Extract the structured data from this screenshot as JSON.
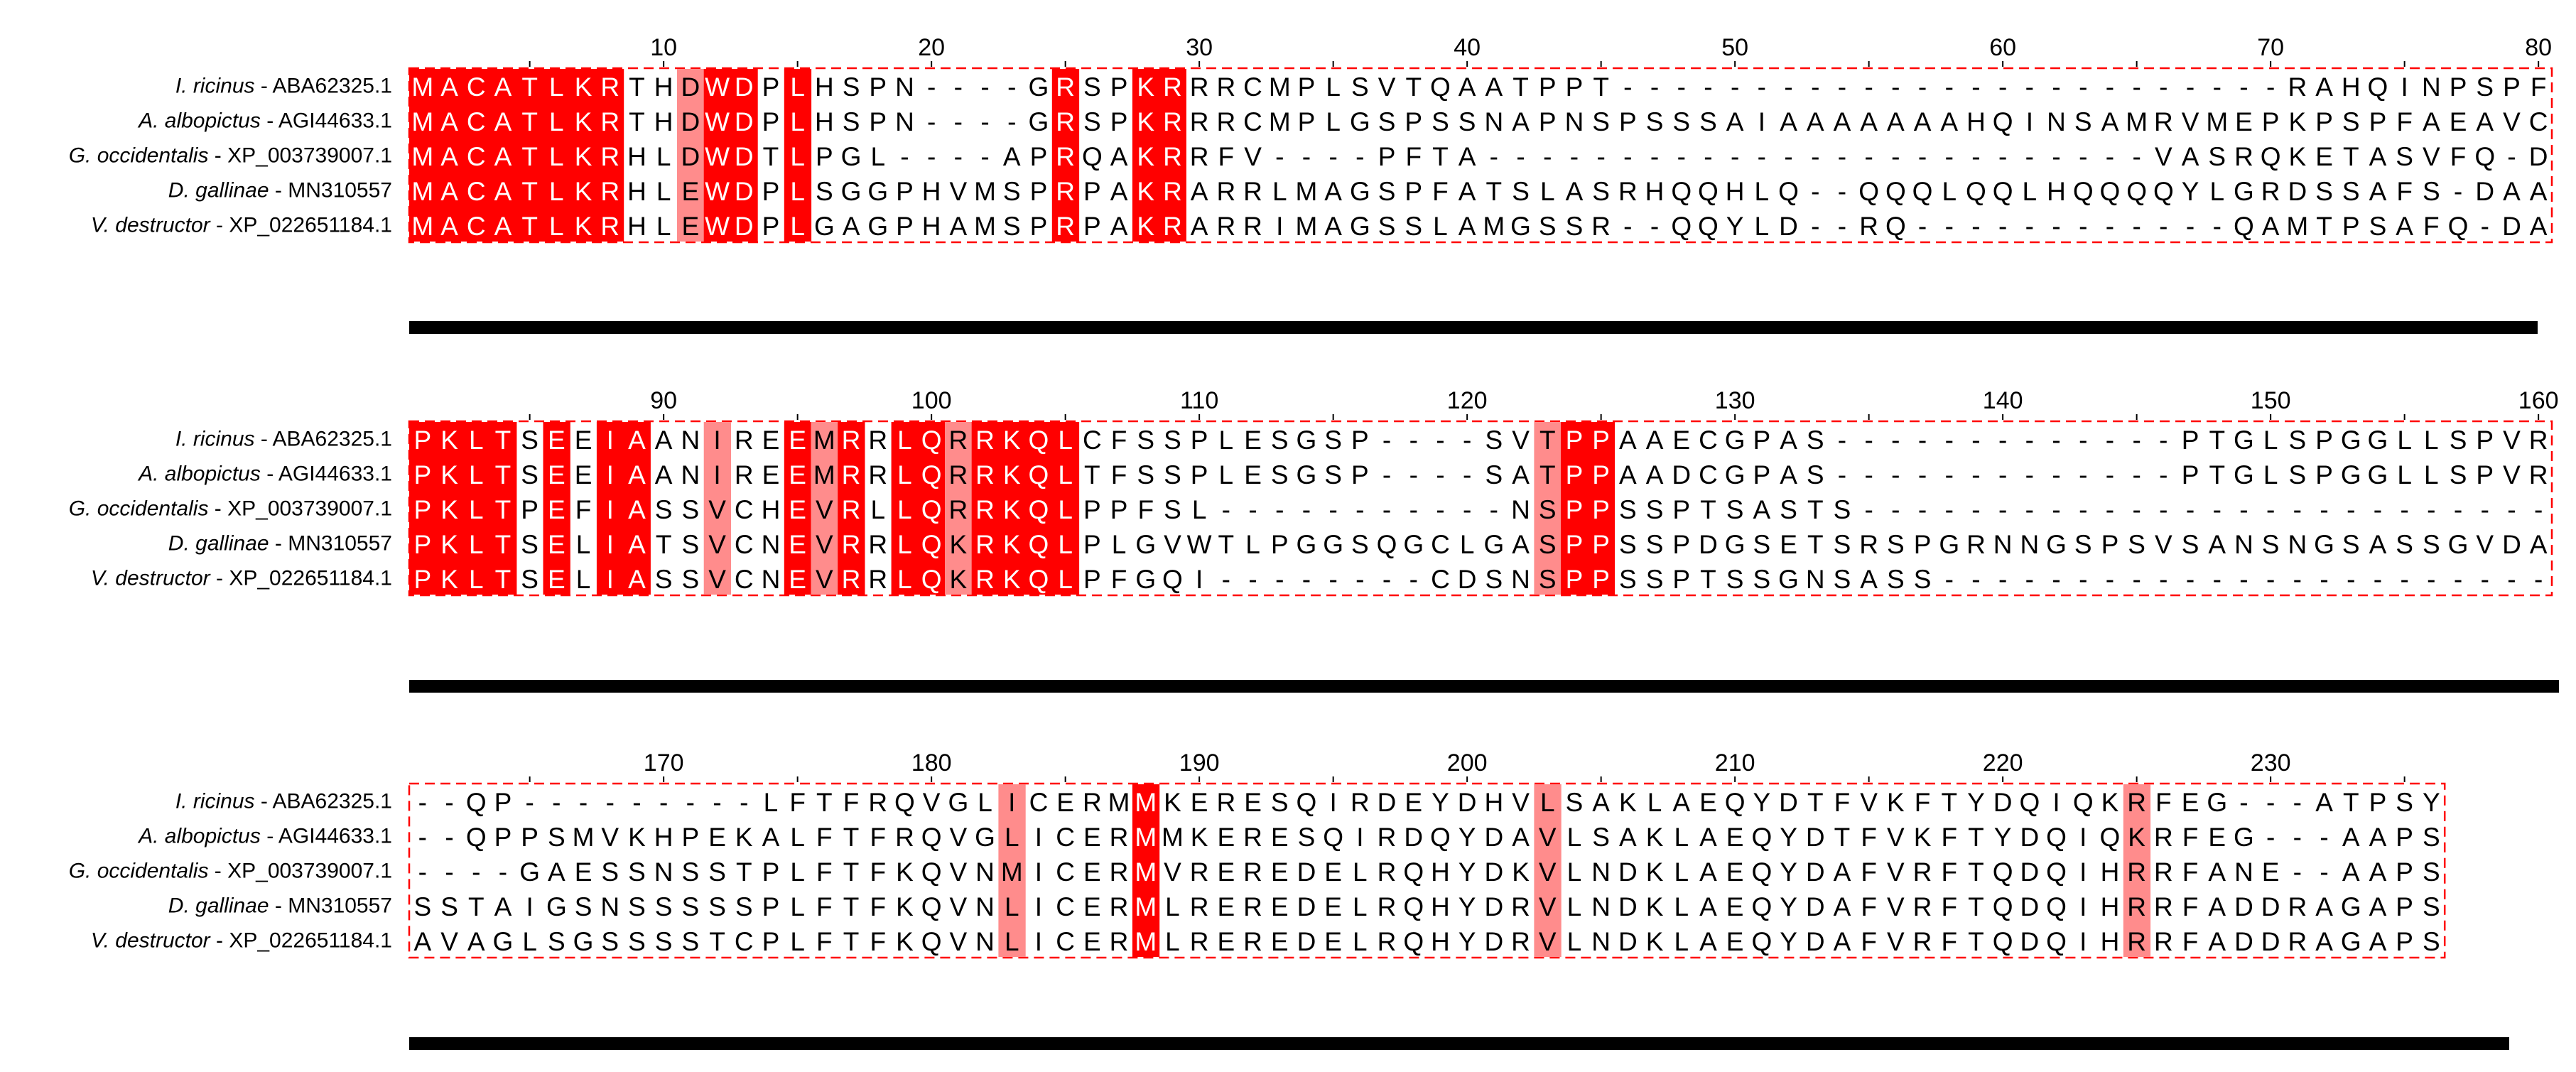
{
  "species": [
    {
      "name": "I. ricinus",
      "accession": " - ABA62325.1"
    },
    {
      "name": "A. albopictus",
      "accession": " - AGI44633.1"
    },
    {
      "name": "G. occidentalis",
      "accession": " - XP_003739007.1"
    },
    {
      "name": "D. gallinae",
      "accession": " -  MN310557"
    },
    {
      "name": "V. destructor",
      "accession": " - XP_022651184.1"
    }
  ],
  "blocks": [
    {
      "start": 1,
      "sequences": [
        "MACATLKRTHDWDPLHSPN----GRSPKRRRCMPLSVTQAATPPT-------------------------RAHQINPSPFG-EVP",
        "MACATLKRTHDWDPLHSPN----GRSPKRRRCMPLGSPSSNAPNSPSSSAIAAAAAAAHQINSAMRVMEPKPSPFAEAVC",
        "MACATLKRHLDWDTLPGL----APRQAKRRFV----PFTA-------------------------VASRQKETASVFQ-DAA",
        "MACATLKRHLEWDPLSGGPHVMSPRPAKRARRLMAGSPFATSLASRHQQHLQ--QQQLQQLHQQQQYLGRDSSAFS-DAA",
        "MACATLKRHLEWDPLGAGPHAMSPRPAKRARRIMAGSSLAMGSSR--QQYLD--RQ------------QAMTPSAFQ-DAA"
      ]
    },
    {
      "start": 81,
      "sequences": [
        "PKLTSEEIAANIREEMRRLQRRKQLCFSSPLESGSP----SVTPPAAECGPAS-------------PTGLSPGGLLSPVRRD",
        "PKLTSEEIAANIREEMRRLQRRKQLTFSSPLESGSP----SATPPAADCGPAS-------------PTGLSPGGLLSPVRRD",
        "PKLTPEFIASSVCHEVRLLQRRKQLPPFSL-----------NSPPSSPTSASTS------------------------------",
        "PKLTSELIATSVCNEVRRLQKRKQLPLGVWTLPGGSQGCLGASPPSSPDGSETSRSPGRNNGSPSVSANSNGSASSGVDAV",
        "PKLTSELIASSVCNEVRRLQKRKQLPFGQI--------CDSNSPPSSPTSSGNSASS-------------------------SA"
      ]
    },
    {
      "start": 161,
      "sequences": [
        "--QP---------LFTFRQVGLICERMMKERESQIRDEYDHVLSAKLAEQYDTFVKFTYDQIQKRFEG---ATPSYLS",
        "--QPPSMVKHPEKALFTFRQVGLICERMMKERESQIRDQYDAVLSAKLAEQYDTFVKFTYDQIQKRFEG---AAPSYLS",
        "----GAESSNSSTPLFTFKQVNMICERMVREREDELRQHYDKVLNDKLAEQYDAFVRFTQDQIHRRFANE--AAPSYCS",
        "SSTAIGSNSSSSSPLFTFKQVNLICERMLREREDELRQHYDRVLNDKLAEQYDAFVRFTQDQIHRRFADDRAGAPSYCS",
        "AVAGLSGSSSSTCPLFTFKQVNLICERMLREREDELRQHYDRVLNDKLAEQYDAFVRFTQDQIHRRFADDRAGAPSYCS"
      ]
    }
  ],
  "tick_labels": [
    [
      "10",
      "20",
      "30",
      "40",
      "50",
      "60",
      "70",
      "80"
    ],
    [
      "90",
      "100",
      "110",
      "120",
      "130",
      "140",
      "150",
      "160"
    ],
    [
      "170",
      "180",
      "190",
      "200",
      "210",
      "220",
      "230"
    ]
  ],
  "colors": {
    "identical": "#ff0000",
    "similar": "#ff8c8c",
    "identical_text": "#ffffff",
    "similar_text": "#000000",
    "plain_text": "#000000",
    "dashed_box": "#ff0000",
    "bar": "#000000"
  }
}
